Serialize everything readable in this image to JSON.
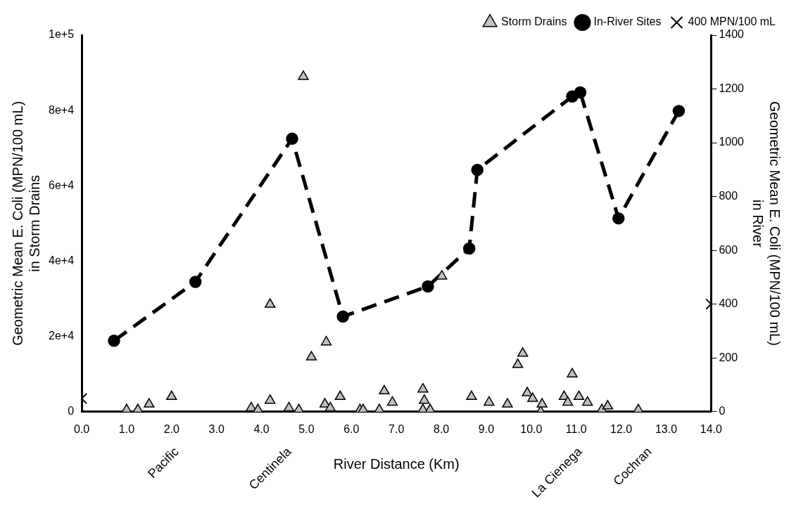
{
  "chart_data": {
    "type": "scatter",
    "xlabel": "River Distance (Km)",
    "ylabel": "Geometric Mean E. Coli (MPN/100 mL)\nin Storm Drains",
    "y2label": "Geometric Mean E. Coli (MPN/100 mL)\nin River",
    "xlim": [
      0,
      14
    ],
    "xticks": [
      {
        "value": 0,
        "label": "0.0"
      },
      {
        "value": 1,
        "label": "1.0"
      },
      {
        "value": 2,
        "label": "2.0"
      },
      {
        "value": 3,
        "label": "3.0"
      },
      {
        "value": 4,
        "label": "4.0"
      },
      {
        "value": 5,
        "label": "5.0"
      },
      {
        "value": 6,
        "label": "6.0"
      },
      {
        "value": 7,
        "label": "7.0"
      },
      {
        "value": 8,
        "label": "8.0"
      },
      {
        "value": 9,
        "label": "9.0"
      },
      {
        "value": 10,
        "label": "10.0"
      },
      {
        "value": 11,
        "label": "11.0"
      },
      {
        "value": 12,
        "label": "12.0"
      },
      {
        "value": 13,
        "label": "13.0"
      },
      {
        "value": 14,
        "label": "14.0"
      }
    ],
    "ylim": [
      0,
      100000
    ],
    "yticks": [
      0,
      {
        "value": 20000,
        "label": "2e+4"
      },
      {
        "value": 40000,
        "label": "4e+4"
      },
      {
        "value": 60000,
        "label": "6e+4"
      },
      {
        "value": 80000,
        "label": "8e+4"
      },
      {
        "value": 100000,
        "label": "1e+5"
      }
    ],
    "y2lim": [
      0,
      1400
    ],
    "y2ticks": [
      0,
      200,
      400,
      600,
      800,
      1000,
      1200,
      1400
    ],
    "grid": false,
    "legend": "top right",
    "annotations": [
      "Pacific",
      "Centinela",
      "La Cienega",
      "Cochran"
    ],
    "series": [
      {
        "name": "Storm Drains",
        "type": "scatter",
        "marker": "triangle",
        "color": "#c0c0c0",
        "x": [
          1.0,
          1.25,
          1.5,
          2.0,
          3.77,
          3.92,
          4.19,
          4.19,
          4.61,
          4.83,
          4.93,
          5.11,
          5.41,
          5.44,
          5.53,
          5.75,
          6.19,
          6.26,
          6.62,
          6.73,
          6.91,
          7.59,
          7.59,
          7.62,
          7.75,
          8.01,
          8.67,
          9.06,
          9.47,
          9.7,
          9.81,
          9.91,
          10.03,
          10.21,
          10.24,
          10.73,
          10.81,
          10.91,
          11.06,
          11.25,
          11.57,
          11.7,
          12.38
        ],
        "values": [
          500,
          500,
          2000,
          4000,
          1000,
          500,
          28500,
          3000,
          1000,
          500,
          89000,
          14500,
          2000,
          18500,
          1000,
          4000,
          500,
          500,
          500,
          5500,
          2500,
          6000,
          500,
          3000,
          500,
          36000,
          4000,
          2500,
          2000,
          12500,
          15500,
          5000,
          3500,
          0,
          2000,
          4000,
          2500,
          10000,
          4000,
          2500,
          500,
          1500,
          500
        ]
      },
      {
        "name": "In-River Sites",
        "type": "line",
        "marker": "circle",
        "line_style": "dashed",
        "color": "#000000",
        "axis": "y2",
        "x": [
          0.72,
          2.53,
          4.68,
          5.81,
          7.7,
          8.62,
          8.8,
          10.91,
          11.09,
          11.94,
          13.28
        ],
        "values": [
          264,
          483,
          1015,
          354,
          466,
          607,
          899,
          1172,
          1187,
          719,
          1118
        ]
      },
      {
        "name": "400 MPN/100 mL",
        "type": "scatter",
        "marker": "cross",
        "color": "#000000",
        "axis": "y2",
        "x": [
          0,
          14
        ],
        "values": [
          49,
          400
        ]
      }
    ]
  }
}
